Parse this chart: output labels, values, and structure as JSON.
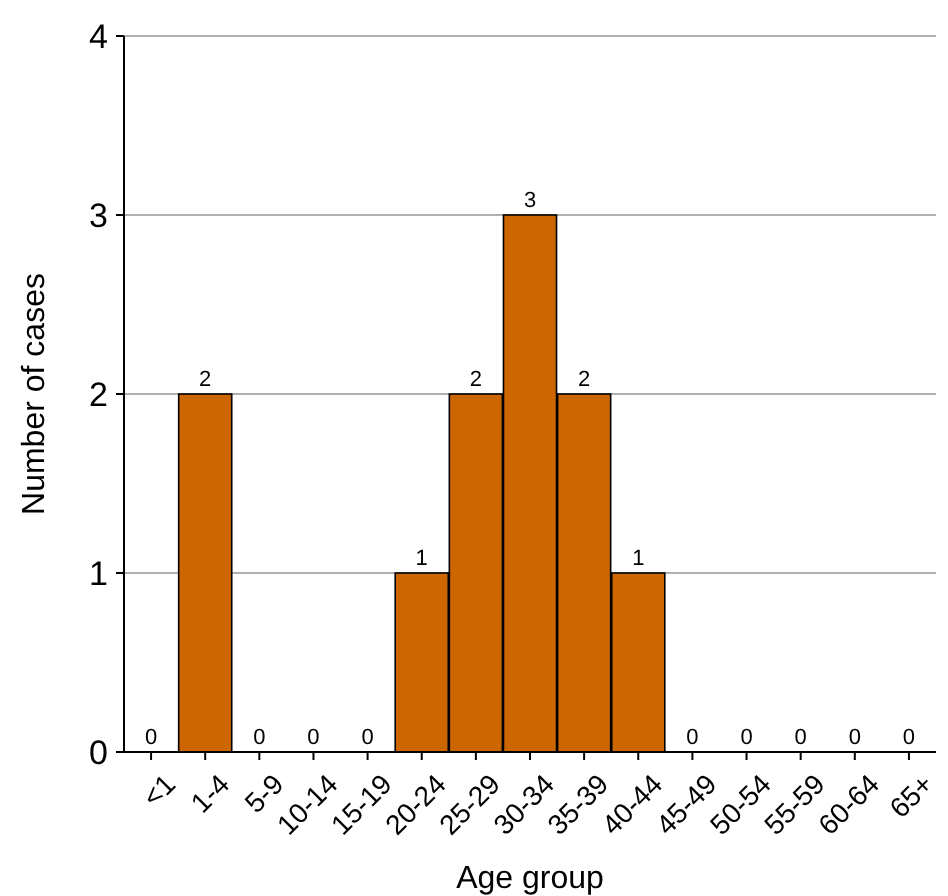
{
  "chart_data": {
    "type": "bar",
    "xlabel": "Age group",
    "ylabel": "Number of cases",
    "categories": [
      "<1",
      "1-4",
      "5-9",
      "10-14",
      "15-19",
      "20-24",
      "25-29",
      "30-34",
      "35-39",
      "40-44",
      "45-49",
      "50-54",
      "55-59",
      "60-64",
      "65+"
    ],
    "values": [
      0,
      2,
      0,
      0,
      0,
      1,
      2,
      3,
      2,
      1,
      0,
      0,
      0,
      0,
      0
    ],
    "color": "#cc6600",
    "ylim": [
      0,
      4
    ],
    "yticks": [
      0,
      1,
      2,
      3,
      4
    ],
    "grid": "y",
    "data_labels": true
  }
}
